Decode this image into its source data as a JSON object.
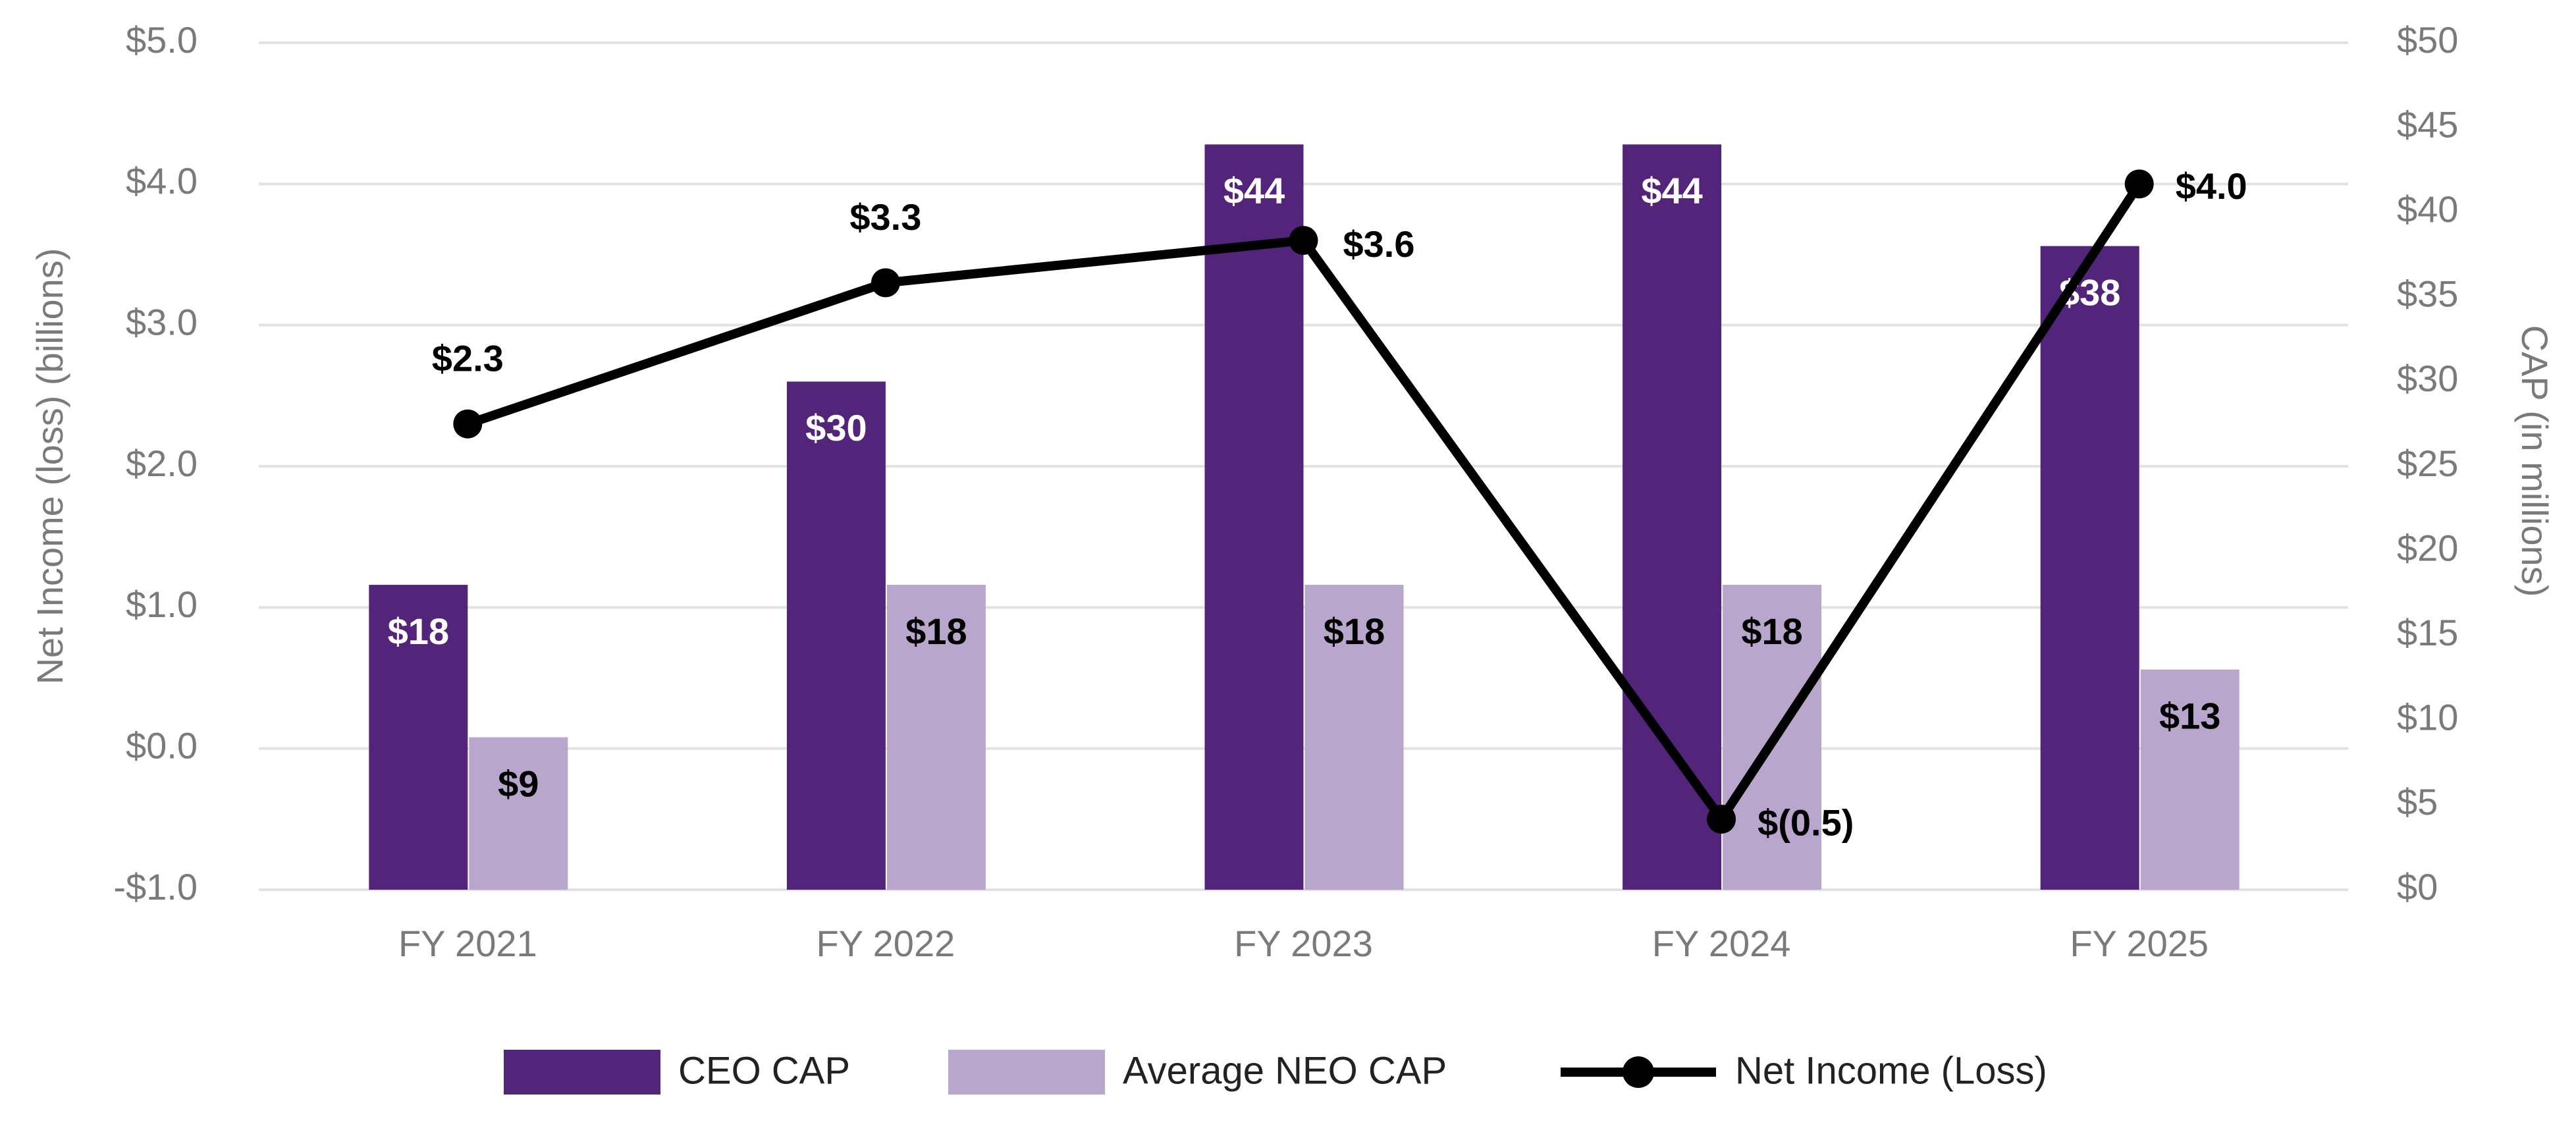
{
  "chart_data": {
    "type": "bar_line",
    "categories": [
      "FY 2021",
      "FY 2022",
      "FY 2023",
      "FY 2024",
      "FY 2025"
    ],
    "y_label": "Net Income (loss) (billions)",
    "y2_label": "CAP (in millions)",
    "ylim": [
      -1.0,
      5.0
    ],
    "yticks": [
      {
        "value": -1.0,
        "label": "-$1.0"
      },
      {
        "value": 0.0,
        "label": "$0.0"
      },
      {
        "value": 1.0,
        "label": "$1.0"
      },
      {
        "value": 2.0,
        "label": "$2.0"
      },
      {
        "value": 3.0,
        "label": "$3.0"
      },
      {
        "value": 4.0,
        "label": "$4.0"
      },
      {
        "value": 5.0,
        "label": "$5.0"
      }
    ],
    "y2lim": [
      0,
      50
    ],
    "y2ticks": [
      {
        "value": 0,
        "label": "$0"
      },
      {
        "value": 5,
        "label": "$5"
      },
      {
        "value": 10,
        "label": "$10"
      },
      {
        "value": 15,
        "label": "$15"
      },
      {
        "value": 20,
        "label": "$20"
      },
      {
        "value": 25,
        "label": "$25"
      },
      {
        "value": 30,
        "label": "$30"
      },
      {
        "value": 35,
        "label": "$35"
      },
      {
        "value": 40,
        "label": "$40"
      },
      {
        "value": 45,
        "label": "$45"
      },
      {
        "value": 50,
        "label": "$50"
      }
    ],
    "grid": true,
    "series": [
      {
        "name": "CEO CAP",
        "type": "bar",
        "axis": "y2",
        "color": "#52247a",
        "values": [
          18,
          30,
          44,
          44,
          38
        ],
        "value_labels": [
          "$18",
          "$30",
          "$44",
          "$44",
          "$38"
        ]
      },
      {
        "name": "Average NEO CAP",
        "type": "bar",
        "axis": "y2",
        "color": "#b8a6cc",
        "values": [
          9,
          18,
          18,
          18,
          13
        ],
        "value_labels": [
          "$9",
          "$18",
          "$18",
          "$18",
          "$13"
        ]
      },
      {
        "name": "Net Income (Loss)",
        "type": "line",
        "color": "#000000",
        "values": [
          2.3,
          3.3,
          3.6,
          -0.5,
          4.0
        ],
        "value_labels": [
          "$2.3",
          "$3.3",
          "$3.6",
          "$(0.5)",
          "$4.0"
        ]
      }
    ]
  }
}
